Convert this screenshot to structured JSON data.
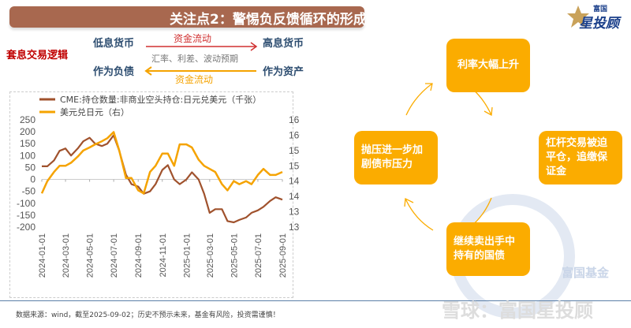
{
  "header": {
    "title": "关注点2：警惕负反馈循环的形成",
    "logo_text": "富国星投顾",
    "logo_small": "富国",
    "logo_big": "星投顾"
  },
  "logic": {
    "label": "套息交易逻辑",
    "low_rate": "低息货币",
    "high_rate": "高息货币",
    "liability": "作为负债",
    "asset": "作为资产",
    "flow_top": "资金流动",
    "middle": "汇率、利差、波动预期",
    "flow_bottom": "资金流动"
  },
  "cycle": {
    "top": "利率大幅上升",
    "right": "杠杆交易被迫平仓，追缴保证金",
    "bottom": "继续卖出手中持有的国债",
    "left": "抛压进一步加剧债市压力",
    "accent": "#fbac00"
  },
  "chart_data": {
    "type": "line",
    "x_ticks": [
      "2024-01-01",
      "2024-03-01",
      "2024-05-01",
      "2024-07-01",
      "2024-09-01",
      "2024-11-01",
      "2025-01-01",
      "2025-03-01",
      "2025-05-01",
      "2025-07-01",
      "2025-09-01"
    ],
    "y_left": {
      "ticks": [
        "250",
        "200",
        "150",
        "100",
        "50",
        "0",
        "-50",
        "-100",
        "-150",
        "-200"
      ],
      "range": [
        -200,
        250
      ]
    },
    "y_right": {
      "ticks": [
        "165",
        "160",
        "155",
        "150",
        "145",
        "140",
        "135",
        "130"
      ],
      "range": [
        130,
        165
      ]
    },
    "grid": false,
    "legend_position": "top-left",
    "series": [
      {
        "name": "CME:持仓数量:非商业空头持仓:日元兑美元（千张）",
        "axis": "left",
        "color": "#a0522d",
        "x": [
          "2024-01-01",
          "2024-01-15",
          "2024-02-01",
          "2024-02-15",
          "2024-03-01",
          "2024-03-15",
          "2024-04-01",
          "2024-04-15",
          "2024-05-01",
          "2024-05-15",
          "2024-06-01",
          "2024-06-15",
          "2024-07-01",
          "2024-07-15",
          "2024-08-01",
          "2024-08-15",
          "2024-09-01",
          "2024-09-15",
          "2024-10-01",
          "2024-10-15",
          "2024-11-01",
          "2024-11-15",
          "2024-12-01",
          "2024-12-15",
          "2025-01-01",
          "2025-01-15",
          "2025-02-01",
          "2025-02-15",
          "2025-03-01",
          "2025-03-15",
          "2025-04-01",
          "2025-04-15",
          "2025-05-01",
          "2025-05-15",
          "2025-06-01",
          "2025-06-15",
          "2025-07-01",
          "2025-07-15",
          "2025-08-01",
          "2025-08-15",
          "2025-09-01"
        ],
        "values": [
          55,
          55,
          80,
          120,
          130,
          100,
          130,
          160,
          175,
          150,
          140,
          150,
          185,
          120,
          20,
          -20,
          -30,
          -60,
          -50,
          -20,
          40,
          60,
          0,
          -20,
          0,
          30,
          0,
          -60,
          -140,
          -125,
          -125,
          -175,
          -180,
          -170,
          -160,
          -140,
          -130,
          -115,
          -90,
          -75,
          -85
        ]
      },
      {
        "name": "美元兑日元（右）",
        "axis": "right",
        "color": "#f5a300",
        "x": [
          "2024-01-01",
          "2024-01-15",
          "2024-02-01",
          "2024-02-15",
          "2024-03-01",
          "2024-03-15",
          "2024-04-01",
          "2024-04-15",
          "2024-05-01",
          "2024-05-15",
          "2024-06-01",
          "2024-06-15",
          "2024-07-01",
          "2024-07-15",
          "2024-08-01",
          "2024-08-15",
          "2024-09-01",
          "2024-09-15",
          "2024-10-01",
          "2024-10-15",
          "2024-11-01",
          "2024-11-15",
          "2024-12-01",
          "2024-12-15",
          "2025-01-01",
          "2025-01-15",
          "2025-02-01",
          "2025-02-15",
          "2025-03-01",
          "2025-03-15",
          "2025-04-01",
          "2025-04-15",
          "2025-05-01",
          "2025-05-15",
          "2025-06-01",
          "2025-06-15",
          "2025-07-01",
          "2025-07-15",
          "2025-08-01",
          "2025-08-15",
          "2025-09-01"
        ],
        "values": [
          141,
          145,
          148,
          150,
          150,
          151,
          153,
          155,
          156,
          157,
          158,
          159,
          161,
          155,
          146,
          146,
          142,
          141,
          148,
          150,
          154,
          154,
          150,
          157,
          157,
          156,
          152,
          150,
          149,
          148,
          144,
          142,
          145,
          144,
          145,
          144,
          147,
          149,
          147,
          147,
          148
        ]
      }
    ]
  },
  "footer": {
    "source": "数据来源：wind，截至2025-09-02；历史不预示未来，基金有风险，投资需谨慎！",
    "watermark": "雪球：富国星投顾",
    "seal": "富国基金"
  }
}
